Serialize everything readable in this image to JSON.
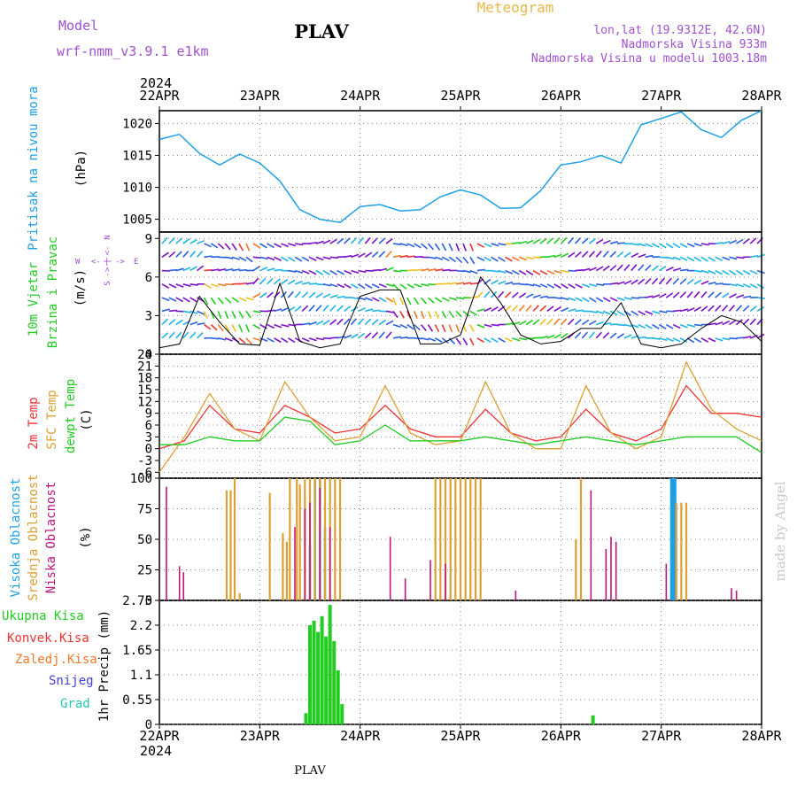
{
  "header": {
    "title": "PLAV",
    "app_name": "Meteogram",
    "model_label": "Model",
    "model_name": "wrf-nmm_v3.9.1  e1km",
    "lonlat": "lon,lat (19.9312E, 42.6N)",
    "elevation": "Nadmorska Visina 933m",
    "model_elevation": "Nadmorska Visina u modelu 1003.18m",
    "year_top": "2024",
    "year_bottom": "2024",
    "footer": "PLAV",
    "credit": "made by Angel"
  },
  "colors": {
    "pressure": "#1ea0e6",
    "t2m": "#ee3333",
    "tsfc": "#dda033",
    "dewpt": "#22cc22",
    "high_cloud": "#1e9ee6",
    "mid_cloud": "#dda033",
    "low_cloud": "#c0167c",
    "total_precip": "#22cc22",
    "conv_precip": "#ee3333",
    "frz_precip": "#f07a28",
    "snow": "#4040dd",
    "hail": "#22c8b0",
    "purple_text": "#a050d0"
  },
  "chart_data": [
    {
      "type": "line",
      "panel": "pressure",
      "ylabel_name": "Pritisak na nivou mora",
      "ylabel_unit": "(hPa)",
      "x_ticks": [
        "22APR",
        "23APR",
        "24APR",
        "25APR",
        "26APR",
        "27APR",
        "28APR"
      ],
      "ylim": [
        1003,
        1022
      ],
      "yticks": [
        1005,
        1010,
        1015,
        1020
      ],
      "grid": true,
      "x": [
        0,
        0.2,
        0.4,
        0.6,
        0.8,
        1.0,
        1.2,
        1.4,
        1.6,
        1.8,
        2.0,
        2.2,
        2.4,
        2.6,
        2.8,
        3.0,
        3.2,
        3.4,
        3.6,
        3.8,
        4.0,
        4.2,
        4.4,
        4.6,
        4.8,
        5.0,
        5.2,
        5.4,
        5.6,
        5.8,
        6.0
      ],
      "values": [
        1017.5,
        1018.3,
        1015.3,
        1013.5,
        1015.2,
        1013.8,
        1011,
        1006.5,
        1005,
        1004.5,
        1007,
        1007.3,
        1006.3,
        1006.5,
        1008.5,
        1009.6,
        1008.8,
        1006.7,
        1006.8,
        1009.5,
        1013.5,
        1014,
        1015,
        1013.8,
        1019.8,
        1020.8,
        1021.8,
        1019,
        1017.8,
        1020.5,
        1022
      ]
    },
    {
      "type": "line",
      "panel": "wind",
      "ylabel_name": "10m Vjetar Brzina i Pravac",
      "ylabel_unit": "(m/s)",
      "compass": {
        "n": "N",
        "s": "S",
        "w": "W",
        "e": "E"
      },
      "ylim": [
        0,
        9.5
      ],
      "yticks": [
        0,
        3,
        6,
        9
      ],
      "x": [
        0,
        0.2,
        0.4,
        0.6,
        0.8,
        1.0,
        1.2,
        1.4,
        1.6,
        1.8,
        2.0,
        2.2,
        2.4,
        2.6,
        2.8,
        3.0,
        3.2,
        3.4,
        3.6,
        3.8,
        4.0,
        4.2,
        4.4,
        4.6,
        4.8,
        5.0,
        5.2,
        5.4,
        5.6,
        5.8,
        6.0
      ],
      "values": [
        0.5,
        0.8,
        4.5,
        2.5,
        0.8,
        0.7,
        5.5,
        1.0,
        0.5,
        0.8,
        4.5,
        5.0,
        5.0,
        0.8,
        0.8,
        1.5,
        6.0,
        4.0,
        1.5,
        0.8,
        1.0,
        2.0,
        2.0,
        4.0,
        0.8,
        0.5,
        0.8,
        2.0,
        3.0,
        2.5,
        1.0
      ]
    },
    {
      "type": "line",
      "panel": "temperature",
      "ylabel_lines": [
        "2m Temp",
        "SFC Temp",
        "dewpt Temp"
      ],
      "ylabel_unit": "(C)",
      "ylim": [
        -7.5,
        24
      ],
      "yticks": [
        -6,
        -3,
        0,
        3,
        6,
        9,
        12,
        15,
        18,
        21,
        24
      ],
      "x": [
        0,
        0.25,
        0.5,
        0.75,
        1.0,
        1.25,
        1.5,
        1.75,
        2.0,
        2.25,
        2.5,
        2.75,
        3.0,
        3.25,
        3.5,
        3.75,
        4.0,
        4.25,
        4.5,
        4.75,
        5.0,
        5.25,
        5.5,
        5.75,
        6.0
      ],
      "series": [
        {
          "name": "2m Temp",
          "values": [
            0,
            2,
            11,
            5,
            4,
            11,
            8,
            4,
            5,
            11,
            5,
            3,
            3,
            10,
            4,
            2,
            3,
            10,
            4,
            2,
            5,
            16,
            9,
            9,
            8
          ]
        },
        {
          "name": "SFC Temp",
          "values": [
            -6,
            3,
            14,
            5,
            2,
            17,
            8,
            2,
            3,
            16,
            4,
            1,
            2,
            17,
            4,
            0,
            0,
            16,
            4,
            0,
            3,
            22,
            10,
            5,
            2
          ]
        },
        {
          "name": "dewpt Temp",
          "values": [
            1,
            1,
            3,
            2,
            2,
            8,
            7,
            1,
            2,
            6,
            2,
            2,
            2,
            3,
            2,
            1,
            2,
            3,
            2,
            1,
            2,
            3,
            3,
            3,
            -1
          ]
        }
      ]
    },
    {
      "type": "bar",
      "panel": "clouds",
      "ylabel_lines": [
        "Visoka Oblacnost",
        "Srednja Oblacnost",
        "Niska Oblacnost"
      ],
      "ylabel_unit": "(%)",
      "ylim": [
        0,
        100
      ],
      "yticks": [
        0,
        25,
        50,
        75,
        100
      ],
      "series": [
        {
          "name": "Visoka Oblacnost",
          "x": [
            1.5,
            1.55,
            1.6,
            1.65,
            5.1,
            5.12,
            5.14
          ],
          "values": [
            45,
            100,
            100,
            60,
            100,
            100,
            100
          ]
        },
        {
          "name": "Srednja Oblacnost",
          "x": [
            0.67,
            0.71,
            0.75,
            0.8,
            1.1,
            1.23,
            1.27,
            1.3,
            1.37,
            1.4,
            1.45,
            1.5,
            1.55,
            1.6,
            1.65,
            1.7,
            1.75,
            1.8,
            2.75,
            2.8,
            2.85,
            2.9,
            2.95,
            3.0,
            3.05,
            3.1,
            3.15,
            3.2,
            4.15,
            4.2,
            5.15,
            5.2,
            5.25
          ],
          "values": [
            90,
            90,
            100,
            6,
            88,
            55,
            48,
            100,
            100,
            95,
            100,
            100,
            100,
            100,
            100,
            100,
            100,
            100,
            100,
            100,
            100,
            100,
            100,
            100,
            100,
            100,
            100,
            100,
            50,
            100,
            80,
            80,
            80
          ]
        },
        {
          "name": "Niska Oblacnost",
          "x": [
            0.07,
            0.2,
            0.24,
            1.35,
            1.45,
            1.5,
            1.6,
            1.7,
            2.3,
            2.45,
            2.7,
            2.85,
            3.55,
            4.3,
            4.45,
            4.5,
            4.55,
            5.05,
            5.7,
            5.75
          ],
          "values": [
            93,
            28,
            23,
            60,
            75,
            80,
            92,
            60,
            52,
            18,
            33,
            30,
            8,
            90,
            42,
            52,
            48,
            30,
            10,
            8
          ]
        }
      ]
    },
    {
      "type": "bar",
      "panel": "precipitation",
      "ylabel_unit": "1hr Precip (mm)",
      "legend": [
        "Ukupna Kisa",
        "Konvek.Kisa",
        "Zaledj.Kisa",
        "Snijeg",
        "Grad"
      ],
      "ylim": [
        0,
        2.75
      ],
      "yticks": [
        0,
        0.55,
        1.1,
        1.65,
        2.2,
        2.75
      ],
      "series": [
        {
          "name": "Ukupna Kisa",
          "x": [
            1.46,
            1.5,
            1.54,
            1.58,
            1.62,
            1.66,
            1.7,
            1.74,
            1.78,
            1.82,
            4.32
          ],
          "values": [
            0.25,
            2.2,
            2.3,
            2.05,
            2.4,
            1.95,
            2.65,
            1.85,
            1.2,
            0.45,
            0.2
          ]
        },
        {
          "name": "Konvek.Kisa",
          "x": [],
          "values": []
        },
        {
          "name": "Zaledj.Kisa",
          "x": [],
          "values": []
        },
        {
          "name": "Snijeg",
          "x": [],
          "values": []
        },
        {
          "name": "Grad",
          "x": [],
          "values": []
        }
      ]
    }
  ]
}
